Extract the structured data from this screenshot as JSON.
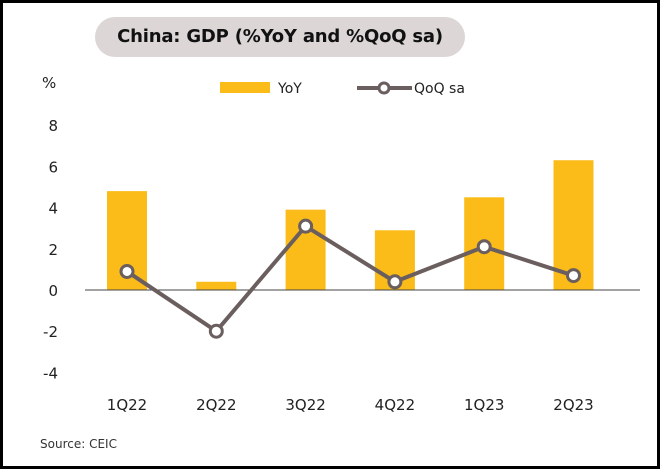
{
  "chart_data": {
    "type": "bar",
    "title": "China: GDP (%YoY and %QoQ sa)",
    "ylabel": "%",
    "xlabel": "",
    "categories": [
      "1Q22",
      "2Q22",
      "3Q22",
      "4Q22",
      "1Q23",
      "2Q23"
    ],
    "series": [
      {
        "name": "YoY",
        "kind": "bar",
        "color": "#fbbc1a",
        "values": [
          4.8,
          0.4,
          3.9,
          2.9,
          4.5,
          6.3
        ]
      },
      {
        "name": "QoQ sa",
        "kind": "line",
        "color": "#6b5e5e",
        "values": [
          0.9,
          -2.0,
          3.1,
          0.4,
          2.1,
          0.7
        ]
      }
    ],
    "ylim": [
      -4,
      8
    ],
    "yticks": [
      "8",
      "6",
      "4",
      "2",
      "0",
      "-2",
      "-4"
    ],
    "ytick_values": [
      8,
      6,
      4,
      2,
      0,
      -2,
      -4
    ],
    "grid": false,
    "legend_position": "top-center"
  },
  "source": "Source: CEIC"
}
